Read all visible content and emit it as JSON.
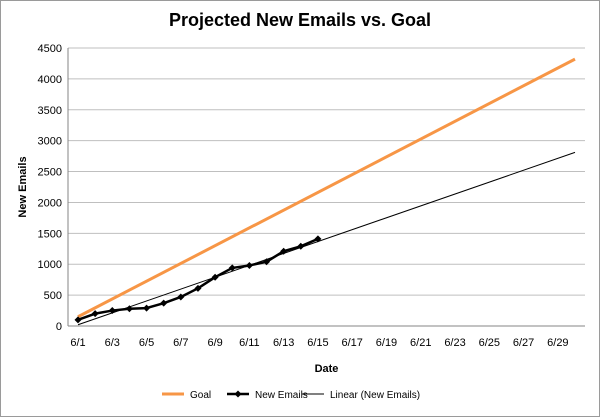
{
  "chart_data": {
    "type": "line",
    "title": "Projected New Emails vs. Goal",
    "xlabel": "Date",
    "ylabel": "New Emails",
    "x_range": [
      "6/1",
      "6/30"
    ],
    "ylim": [
      0,
      4500
    ],
    "y_ticks": [
      0,
      500,
      1000,
      1500,
      2000,
      2500,
      3000,
      3500,
      4000,
      4500
    ],
    "x_tick_labels": [
      "6/1",
      "6/3",
      "6/5",
      "6/7",
      "6/9",
      "6/11",
      "6/13",
      "6/15",
      "6/17",
      "6/19",
      "6/21",
      "6/23",
      "6/25",
      "6/27",
      "6/29"
    ],
    "grid": "horizontal",
    "legend_position": "bottom",
    "series": [
      {
        "name": "Goal",
        "color": "#F79646",
        "style": "line",
        "x": [
          "6/1",
          "6/30"
        ],
        "values": [
          150,
          4320
        ]
      },
      {
        "name": "New Emails",
        "color": "#000000",
        "style": "line-with-diamond-markers",
        "x": [
          "6/1",
          "6/2",
          "6/3",
          "6/4",
          "6/5",
          "6/6",
          "6/7",
          "6/8",
          "6/9",
          "6/10",
          "6/11",
          "6/12",
          "6/13",
          "6/14",
          "6/15"
        ],
        "values": [
          100,
          200,
          250,
          280,
          290,
          370,
          470,
          610,
          790,
          940,
          980,
          1040,
          1210,
          1290,
          1410
        ]
      },
      {
        "name": "Linear (New Emails)",
        "color": "#000000",
        "style": "thin-line",
        "x": [
          "6/1",
          "6/30"
        ],
        "values": [
          20,
          2810
        ]
      }
    ]
  }
}
